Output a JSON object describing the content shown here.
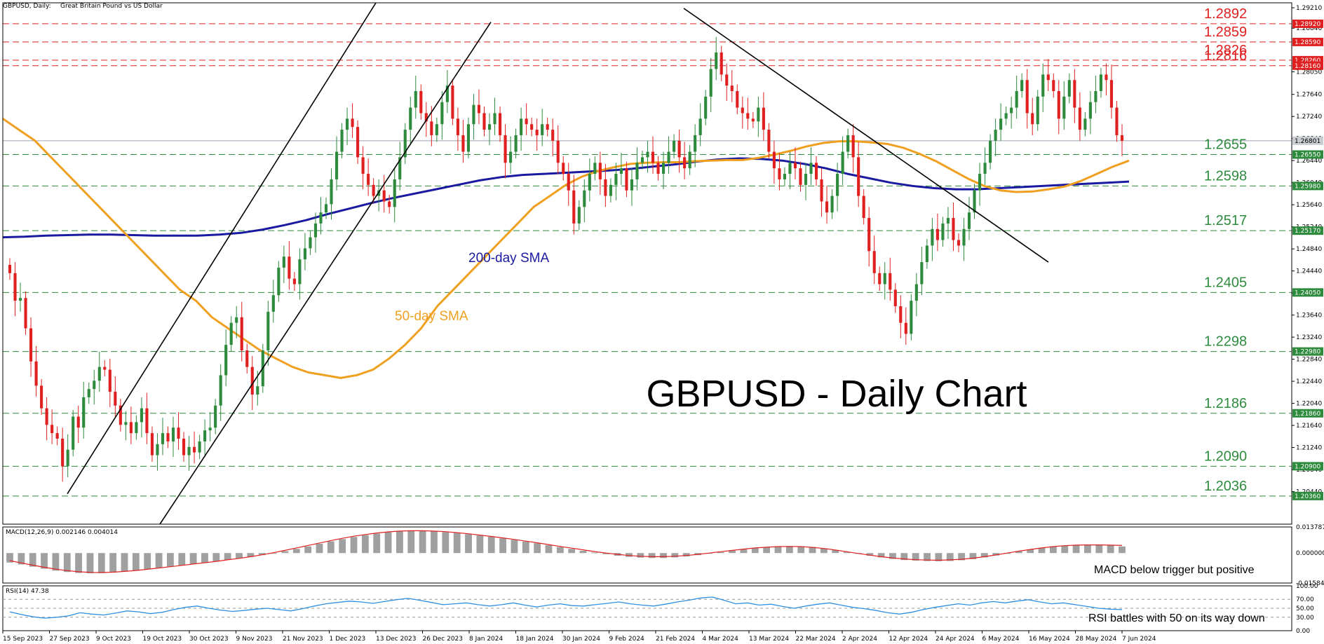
{
  "header": {
    "symbol": "GBPUSD, Daily:",
    "description": "Great Britain Pound vs US Dollar"
  },
  "chart_data": {
    "type": "line",
    "title": "GBPUSD - Daily Chart",
    "price_axis": {
      "ylim": [
        1.1985,
        1.293
      ],
      "tick_labels": [
        "1.29210",
        "1.28840",
        "1.28050",
        "1.27640",
        "1.27240",
        "1.26840",
        "1.26440",
        "1.26040",
        "1.25640",
        "1.25240",
        "1.24840",
        "1.24440",
        "1.24040",
        "1.23640",
        "1.23240",
        "1.22840",
        "1.22440",
        "1.22040",
        "1.21640",
        "1.21240",
        "1.20840",
        "1.20440"
      ],
      "tick_values": [
        1.2921,
        1.2884,
        1.2805,
        1.2764,
        1.2724,
        1.2684,
        1.2644,
        1.2604,
        1.2564,
        1.2524,
        1.2484,
        1.2444,
        1.2404,
        1.2364,
        1.2324,
        1.2284,
        1.2244,
        1.2204,
        1.2164,
        1.2124,
        1.2084,
        1.2044
      ]
    },
    "current_price": {
      "value": 1.268,
      "label": "1.26801"
    },
    "x_ticks": [
      "15 Sep 2023",
      "27 Sep 2023",
      "9 Oct 2023",
      "19 Oct 2023",
      "30 Oct 2023",
      "9 Nov 2023",
      "21 Nov 2023",
      "1 Dec 2023",
      "13 Dec 2023",
      "26 Dec 2023",
      "8 Jan 2024",
      "18 Jan 2024",
      "30 Jan 2024",
      "9 Feb 2024",
      "21 Feb 2024",
      "4 Mar 2024",
      "13 Mar 2024",
      "22 Mar 2024",
      "2 Apr 2024",
      "12 Apr 2024",
      "24 Apr 2024",
      "6 May 2024",
      "16 May 2024",
      "28 May 2024",
      "7 Jun 2024"
    ],
    "resistance_levels": [
      {
        "value": 1.2892,
        "label": "1.2892",
        "tag": "1.28920"
      },
      {
        "value": 1.2859,
        "label": "1.2859",
        "tag": "1.28590"
      },
      {
        "value": 1.2826,
        "label": "1.2826",
        "tag": "1.28260"
      },
      {
        "value": 1.2816,
        "label": "1.2816",
        "tag": "1.28160"
      }
    ],
    "support_levels": [
      {
        "value": 1.2655,
        "label": "1.2655",
        "tag": "1.26550"
      },
      {
        "value": 1.2598,
        "label": "1.2598",
        "tag": "1.25980"
      },
      {
        "value": 1.2517,
        "label": "1.2517",
        "tag": "1.25170"
      },
      {
        "value": 1.2405,
        "label": "1.2405",
        "tag": "1.24050"
      },
      {
        "value": 1.2298,
        "label": "1.2298",
        "tag": "1.22980"
      },
      {
        "value": 1.2186,
        "label": "1.2186",
        "tag": "1.21860"
      },
      {
        "value": 1.209,
        "label": "1.2090",
        "tag": "1.20900"
      },
      {
        "value": 1.2036,
        "label": "1.2036",
        "tag": "1.20360"
      }
    ],
    "closes": [
      1.244,
      1.239,
      1.2395,
      1.234,
      1.228,
      1.2236,
      1.2195,
      1.2165,
      1.215,
      1.214,
      1.209,
      1.212,
      1.218,
      1.216,
      1.2215,
      1.223,
      1.2245,
      1.227,
      1.2265,
      1.2225,
      1.22,
      1.2165,
      1.217,
      1.215,
      1.217,
      1.2195,
      1.215,
      1.211,
      1.213,
      1.215,
      1.2135,
      1.216,
      1.214,
      1.211,
      1.2125,
      1.2115,
      1.2135,
      1.2155,
      1.216,
      1.22,
      1.2255,
      1.231,
      1.235,
      1.236,
      1.23,
      1.227,
      1.222,
      1.2235,
      1.23,
      1.237,
      1.24,
      1.245,
      1.247,
      1.243,
      1.242,
      1.2465,
      1.2485,
      1.2505,
      1.253,
      1.255,
      1.2565,
      1.261,
      1.266,
      1.27,
      1.272,
      1.2705,
      1.265,
      1.262,
      1.26,
      1.258,
      1.259,
      1.257,
      1.256,
      1.261,
      1.265,
      1.27,
      1.274,
      1.277,
      1.273,
      1.2715,
      1.269,
      1.271,
      1.275,
      1.278,
      1.272,
      1.269,
      1.266,
      1.271,
      1.2745,
      1.273,
      1.27,
      1.271,
      1.273,
      1.269,
      1.264,
      1.266,
      1.269,
      1.272,
      1.271,
      1.27,
      1.269,
      1.271,
      1.27,
      1.268,
      1.264,
      1.262,
      1.259,
      1.253,
      1.256,
      1.259,
      1.262,
      1.264,
      1.261,
      1.258,
      1.26,
      1.262,
      1.263,
      1.259,
      1.261,
      1.264,
      1.265,
      1.266,
      1.264,
      1.262,
      1.264,
      1.266,
      1.268,
      1.265,
      1.263,
      1.266,
      1.269,
      1.272,
      1.276,
      1.281,
      1.284,
      1.28,
      1.278,
      1.277,
      1.274,
      1.273,
      1.272,
      1.2715,
      1.274,
      1.27,
      1.266,
      1.263,
      1.261,
      1.262,
      1.264,
      1.263,
      1.26,
      1.262,
      1.264,
      1.261,
      1.257,
      1.255,
      1.258,
      1.262,
      1.266,
      1.269,
      1.265,
      1.258,
      1.254,
      1.248,
      1.244,
      1.242,
      1.244,
      1.241,
      1.238,
      1.235,
      1.233,
      1.239,
      1.242,
      1.246,
      1.249,
      1.252,
      1.25,
      1.253,
      1.254,
      1.25,
      1.249,
      1.252,
      1.255,
      1.259,
      1.262,
      1.264,
      1.268,
      1.27,
      1.272,
      1.273,
      1.274,
      1.277,
      1.279,
      1.273,
      1.271,
      1.276,
      1.28,
      1.279,
      1.277,
      1.272,
      1.276,
      1.279,
      1.274,
      1.27,
      1.272,
      1.275,
      1.277,
      1.28,
      1.279,
      1.274,
      1.269,
      1.268
    ],
    "sma50": [
      1.272,
      1.27,
      1.268,
      1.265,
      1.262,
      1.259,
      1.256,
      1.253,
      1.25,
      1.247,
      1.244,
      1.241,
      1.239,
      1.236,
      1.234,
      1.232,
      1.23,
      1.2285,
      1.227,
      1.226,
      1.2255,
      1.225,
      1.2255,
      1.2265,
      1.2285,
      1.231,
      1.234,
      1.238,
      1.241,
      1.244,
      1.247,
      1.25,
      1.253,
      1.256,
      1.258,
      1.26,
      1.2615,
      1.2625,
      1.2632,
      1.2638,
      1.264,
      1.2641,
      1.2641,
      1.2643,
      1.2644,
      1.2645,
      1.2645,
      1.2649,
      1.2655,
      1.2662,
      1.267,
      1.2676,
      1.2679,
      1.2679,
      1.2677,
      1.2674,
      1.2667,
      1.2656,
      1.2643,
      1.2627,
      1.2611,
      1.2598,
      1.259,
      1.2587,
      1.2588,
      1.2592,
      1.2597,
      1.2607,
      1.262,
      1.2633,
      1.2644
    ],
    "sma200": [
      1.2505,
      1.2506,
      1.2508,
      1.2509,
      1.251,
      1.251,
      1.2509,
      1.2508,
      1.2508,
      1.2508,
      1.251,
      1.2513,
      1.2519,
      1.2527,
      1.2536,
      1.2547,
      1.2557,
      1.2567,
      1.2576,
      1.2584,
      1.2592,
      1.26,
      1.2608,
      1.2614,
      1.2618,
      1.262,
      1.2622,
      1.2624,
      1.2626,
      1.2629,
      1.2633,
      1.2637,
      1.2642,
      1.2646,
      1.2648,
      1.2647,
      1.2644,
      1.2638,
      1.263,
      1.262,
      1.2612,
      1.2604,
      1.2598,
      1.2594,
      1.2592,
      1.2592,
      1.2594,
      1.2596,
      1.2598,
      1.26,
      1.2602,
      1.2604,
      1.2606
    ],
    "sma_labels": {
      "sma200": "200-day SMA",
      "sma50": "50-day SMA"
    },
    "macd": {
      "label": "MACD(12,26,9) 0.002146 0.004014",
      "ylim": [
        -0.015846,
        0.013787
      ],
      "tick_labels": [
        "0.013787",
        "0.000000",
        "-0.015846"
      ],
      "tick_values": [
        0.013787,
        0.0,
        -0.015846
      ],
      "note": "MACD below trigger but positive",
      "histogram": [
        -0.005,
        -0.006,
        -0.0072,
        -0.0083,
        -0.0093,
        -0.01,
        -0.0105,
        -0.0107,
        -0.0106,
        -0.0103,
        -0.0098,
        -0.0092,
        -0.0085,
        -0.0078,
        -0.0071,
        -0.0064,
        -0.0057,
        -0.005,
        -0.0043,
        -0.0036,
        -0.0028,
        -0.002,
        -0.0011,
        -0.0001,
        0.001,
        0.0022,
        0.0035,
        0.0049,
        0.0062,
        0.0074,
        0.0085,
        0.0095,
        0.0103,
        0.011,
        0.0114,
        0.0117,
        0.0117,
        0.0115,
        0.0111,
        0.0106,
        0.01,
        0.0093,
        0.0086,
        0.0078,
        0.007,
        0.0061,
        0.0052,
        0.0042,
        0.0032,
        0.0022,
        0.0012,
        0.0003,
        -0.0006,
        -0.0014,
        -0.002,
        -0.0024,
        -0.0026,
        -0.0026,
        -0.0023,
        -0.0018,
        -0.0011,
        -0.0003,
        0.0005,
        0.0013,
        0.002,
        0.0026,
        0.0031,
        0.0035,
        0.0037,
        0.0036,
        0.0032,
        0.0025,
        0.0016,
        0.0006,
        -0.0004,
        -0.0014,
        -0.0023,
        -0.0031,
        -0.0037,
        -0.004,
        -0.0042,
        -0.0043,
        -0.0042,
        -0.0038,
        -0.0032,
        -0.0023,
        -0.0013,
        -0.0002,
        0.0009,
        0.0019,
        0.0028,
        0.0035,
        0.004,
        0.0043,
        0.0044,
        0.0043,
        0.004,
        0.0035
      ],
      "signal": [
        -0.004,
        -0.0052,
        -0.0064,
        -0.0075,
        -0.0085,
        -0.0093,
        -0.0099,
        -0.0102,
        -0.0103,
        -0.0101,
        -0.0097,
        -0.0092,
        -0.0086,
        -0.0079,
        -0.0072,
        -0.0065,
        -0.0058,
        -0.0051,
        -0.0044,
        -0.0036,
        -0.0028,
        -0.0019,
        -0.0009,
        0.0002,
        0.0014,
        0.0027,
        0.004,
        0.0053,
        0.0066,
        0.0078,
        0.0089,
        0.0098,
        0.0106,
        0.0112,
        0.0116,
        0.0118,
        0.0118,
        0.0116,
        0.0113,
        0.0108,
        0.0102,
        0.0095,
        0.0088,
        0.008,
        0.0072,
        0.0063,
        0.0054,
        0.0045,
        0.0035,
        0.0026,
        0.0017,
        0.0008,
        0.0,
        -0.0007,
        -0.0013,
        -0.0017,
        -0.0019,
        -0.0019,
        -0.0017,
        -0.0013,
        -0.0007,
        0.0,
        0.0007,
        0.0014,
        0.0021,
        0.0027,
        0.0031,
        0.0034,
        0.0035,
        0.0034,
        0.003,
        0.0024,
        0.0016,
        0.0007,
        -0.0002,
        -0.0011,
        -0.0019,
        -0.0026,
        -0.0031,
        -0.0035,
        -0.0037,
        -0.0038,
        -0.0036,
        -0.0033,
        -0.0027,
        -0.0019,
        -0.001,
        0.0,
        0.001,
        0.0019,
        0.0027,
        0.0034,
        0.0039,
        0.0042,
        0.0043,
        0.0043,
        0.0042,
        0.004
      ]
    },
    "rsi": {
      "label": "RSI(14) 47.38",
      "ylim": [
        0,
        100
      ],
      "tick_labels": [
        "100.00",
        "70.00",
        "50.00",
        "30.00",
        "0.00"
      ],
      "tick_values": [
        100,
        70,
        50,
        30,
        0
      ],
      "note": "RSI battles with 50 on its way down",
      "values": [
        42,
        36,
        31,
        28,
        30,
        33,
        40,
        37,
        35,
        39,
        44,
        42,
        38,
        41,
        47,
        52,
        55,
        50,
        46,
        43,
        45,
        48,
        50,
        47,
        44,
        49,
        55,
        60,
        63,
        66,
        64,
        61,
        65,
        69,
        72,
        68,
        63,
        58,
        60,
        62,
        58,
        55,
        58,
        62,
        57,
        53,
        57,
        60,
        56,
        55,
        58,
        61,
        64,
        60,
        57,
        55,
        59,
        64,
        68,
        73,
        75,
        68,
        60,
        62,
        57,
        59,
        54,
        50,
        55,
        59,
        62,
        57,
        52,
        49,
        45,
        40,
        37,
        41,
        47,
        52,
        56,
        60,
        57,
        62,
        65,
        62,
        66,
        69,
        64,
        60,
        62,
        58,
        54,
        50,
        48,
        47
      ]
    }
  }
}
